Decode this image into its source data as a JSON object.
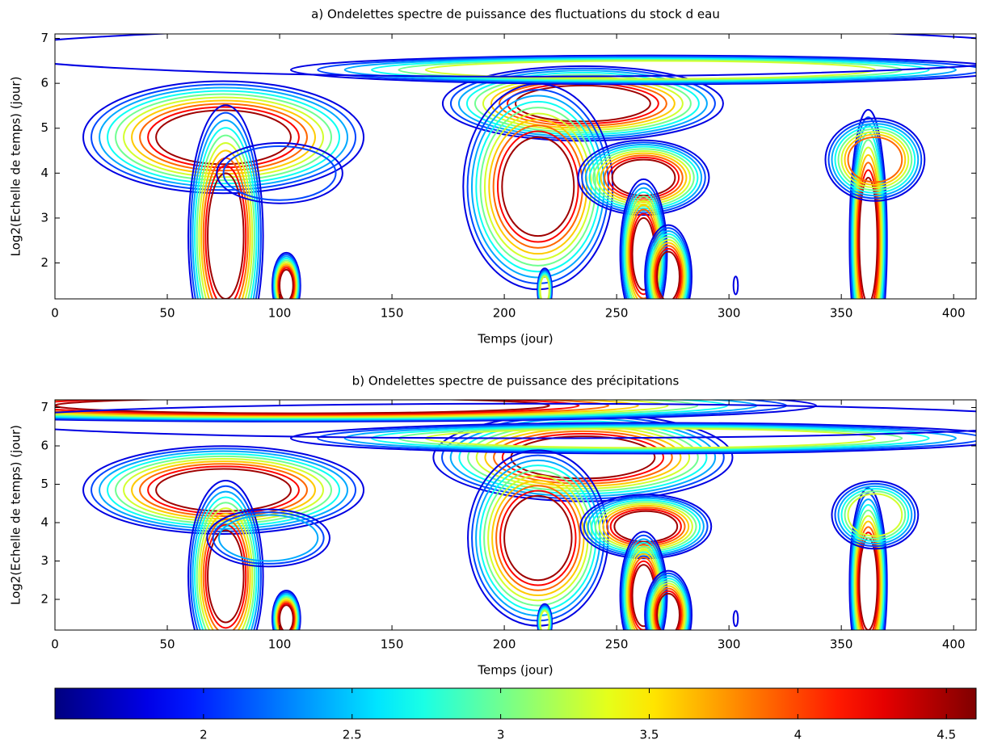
{
  "chart_data": [
    {
      "type": "contour",
      "title": "a) Ondelettes spectre de puissance des fluctuations du stock d eau",
      "xlabel": "Temps (jour)",
      "ylabel": "Log2(Echelle de temps) (jour)",
      "xlim": [
        0,
        410
      ],
      "ylim": [
        1.2,
        7.1
      ],
      "xticks": [
        0,
        50,
        100,
        150,
        200,
        250,
        300,
        350,
        400
      ],
      "yticks": [
        2,
        3,
        4,
        5,
        6,
        7
      ]
    },
    {
      "type": "contour",
      "title": "b) Ondelettes spectre de puissance des précipitations",
      "xlabel": "Temps (jour)",
      "ylabel": "Log2(Echelle de temps) (jour)",
      "xlim": [
        0,
        410
      ],
      "ylim": [
        1.2,
        7.2
      ],
      "xticks": [
        0,
        50,
        100,
        150,
        200,
        250,
        300,
        350,
        400
      ],
      "yticks": [
        2,
        3,
        4,
        5,
        6,
        7
      ]
    }
  ],
  "colorbar": {
    "colormap": "jet",
    "clim": [
      1.5,
      4.6
    ],
    "ticks": [
      2,
      2.5,
      3,
      3.5,
      4,
      4.5
    ],
    "levels": [
      1.8,
      2.1,
      2.4,
      2.7,
      3.0,
      3.3,
      3.6,
      3.9,
      4.2,
      4.5
    ]
  }
}
